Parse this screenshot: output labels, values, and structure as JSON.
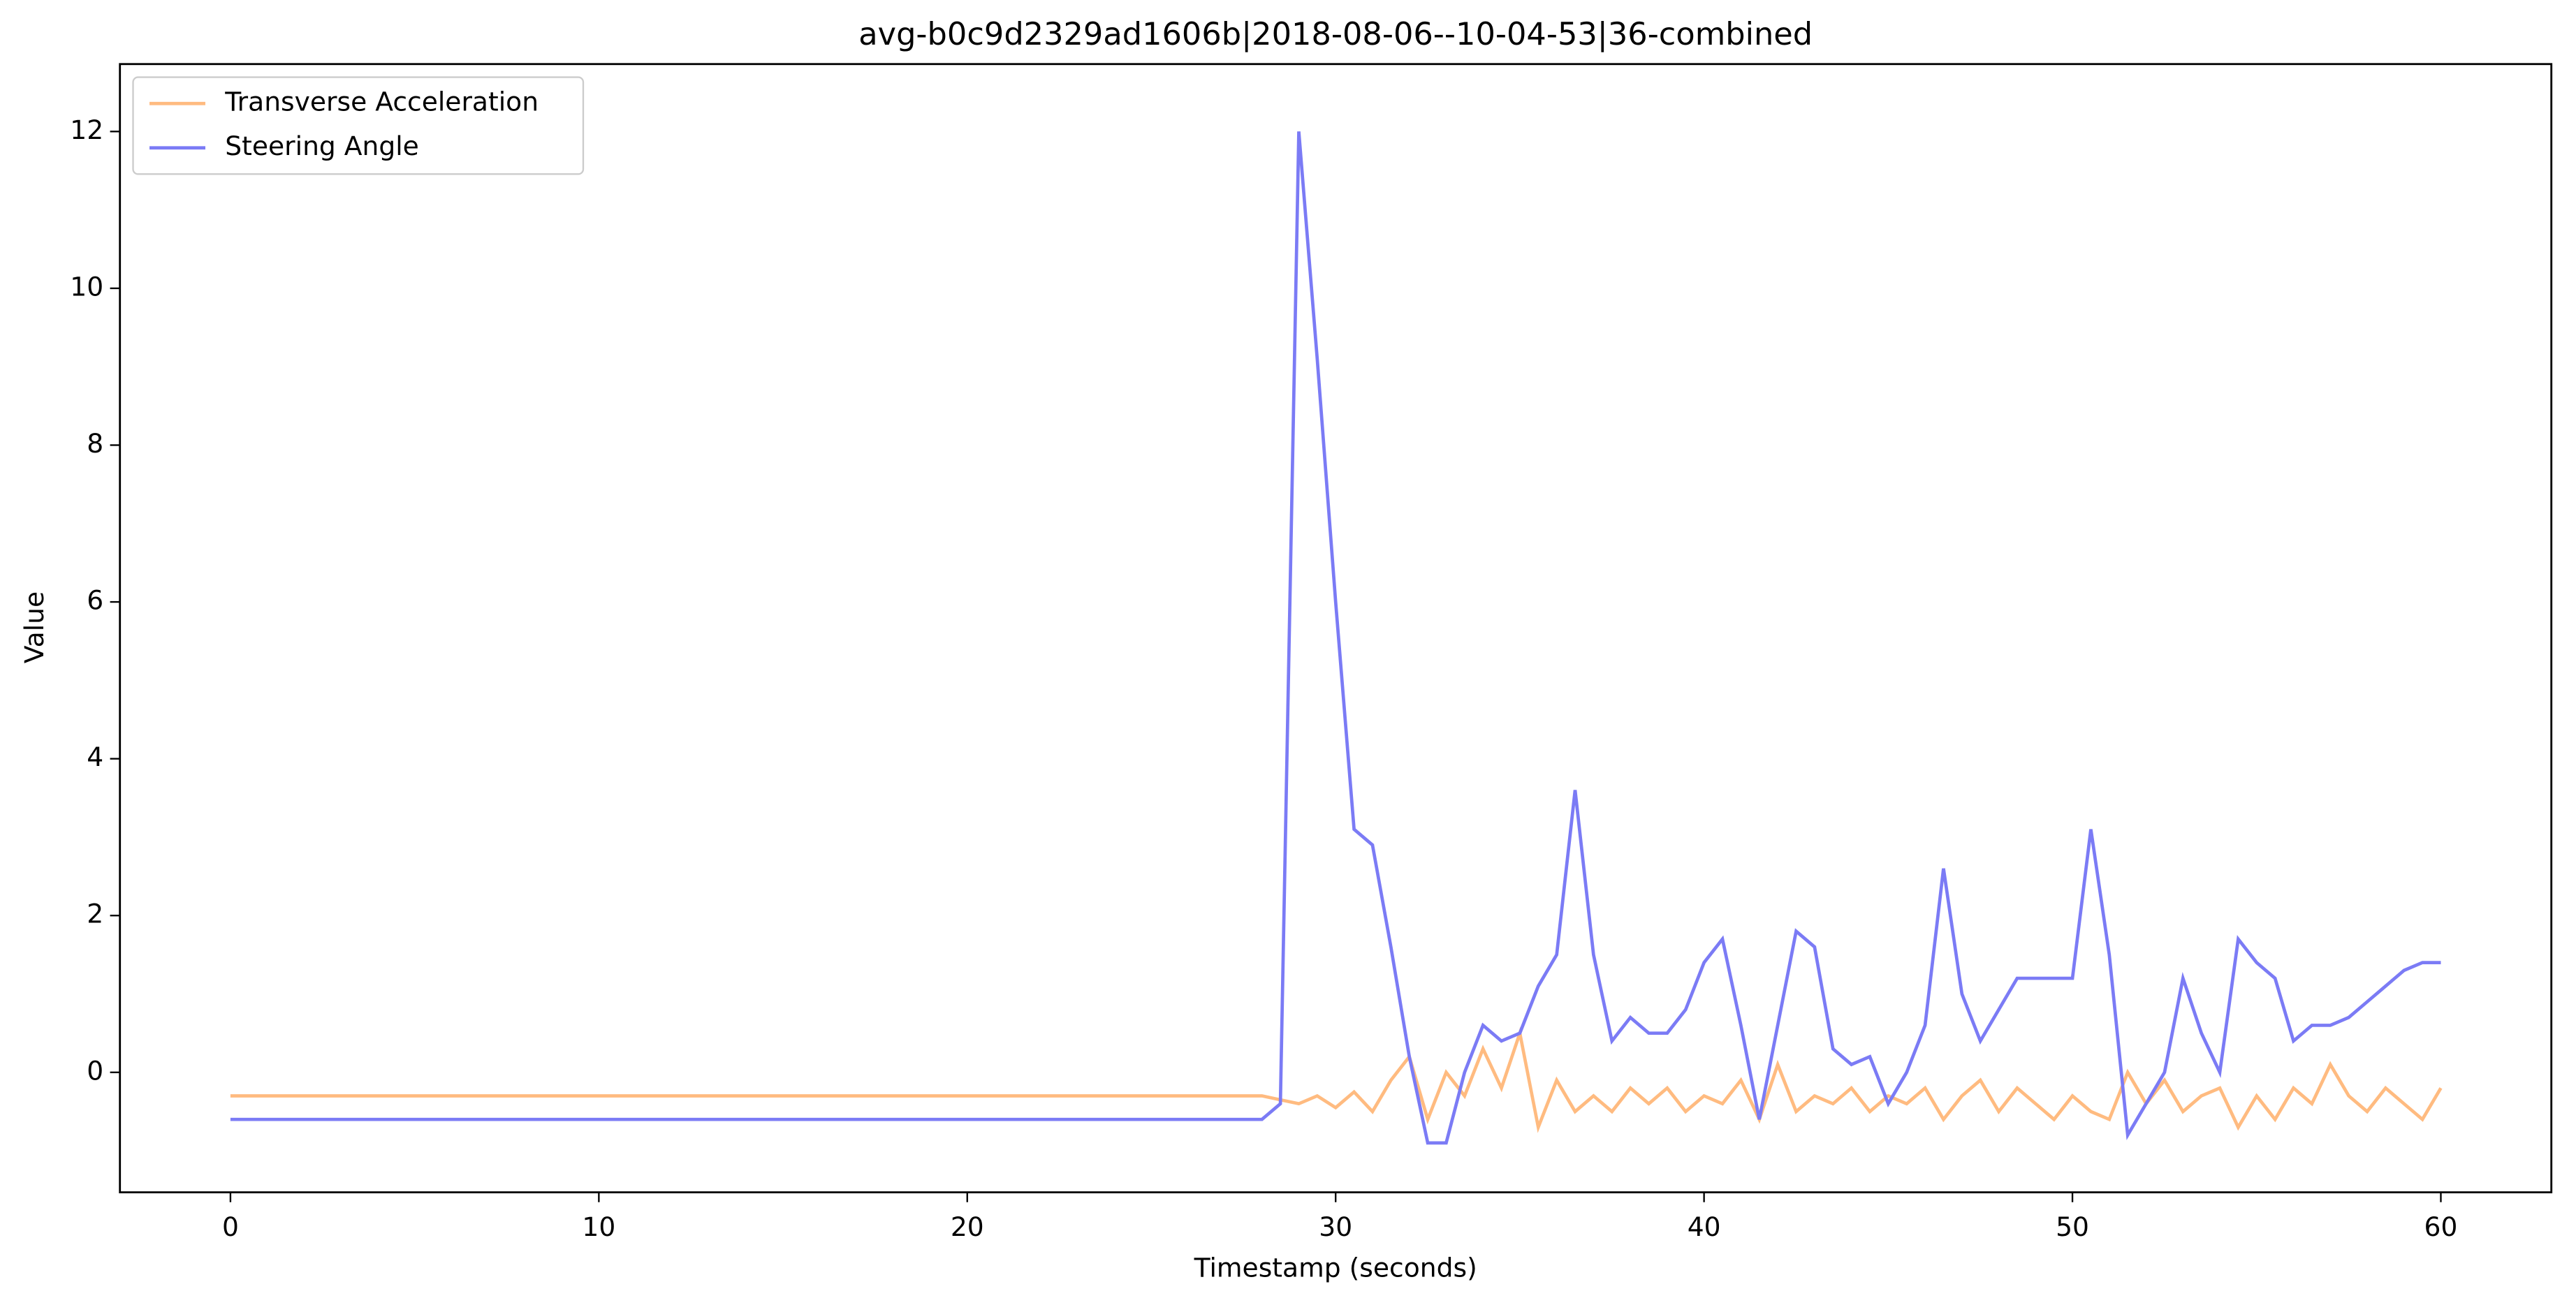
{
  "chart_data": {
    "type": "line",
    "title": "avg-b0c9d2329ad1606b|2018-08-06--10-04-53|36-combined",
    "xlabel": "Timestamp (seconds)",
    "ylabel": "Value",
    "x": [
      0,
      0.5,
      1,
      1.5,
      2,
      2.5,
      3,
      3.5,
      4,
      4.5,
      5,
      5.5,
      6,
      6.5,
      7,
      7.5,
      8,
      8.5,
      9,
      9.5,
      10,
      10.5,
      11,
      11.5,
      12,
      12.5,
      13,
      13.5,
      14,
      14.5,
      15,
      15.5,
      16,
      16.5,
      17,
      17.5,
      18,
      18.5,
      19,
      19.5,
      20,
      20.5,
      21,
      21.5,
      22,
      22.5,
      23,
      23.5,
      24,
      24.5,
      25,
      25.5,
      26,
      26.5,
      27,
      27.5,
      28,
      28.5,
      29,
      29.5,
      30,
      30.5,
      31,
      31.5,
      32,
      32.5,
      33,
      33.5,
      34,
      34.5,
      35,
      35.5,
      36,
      36.5,
      37,
      37.5,
      38,
      38.5,
      39,
      39.5,
      40,
      40.5,
      41,
      41.5,
      42,
      42.5,
      43,
      43.5,
      44,
      44.5,
      45,
      45.5,
      46,
      46.5,
      47,
      47.5,
      48,
      48.5,
      49,
      49.5,
      50,
      50.5,
      51,
      51.5,
      52,
      52.5,
      53,
      53.5,
      54,
      54.5,
      55,
      55.5,
      56,
      56.5,
      57,
      57.5,
      58,
      58.5,
      59,
      59.5,
      60
    ],
    "series": [
      {
        "name": "Transverse Acceleration",
        "color": "#ffbb80",
        "values": [
          -0.3,
          -0.3,
          -0.3,
          -0.3,
          -0.3,
          -0.3,
          -0.3,
          -0.3,
          -0.3,
          -0.3,
          -0.3,
          -0.3,
          -0.3,
          -0.3,
          -0.3,
          -0.3,
          -0.3,
          -0.3,
          -0.3,
          -0.3,
          -0.3,
          -0.3,
          -0.3,
          -0.3,
          -0.3,
          -0.3,
          -0.3,
          -0.3,
          -0.3,
          -0.3,
          -0.3,
          -0.3,
          -0.3,
          -0.3,
          -0.3,
          -0.3,
          -0.3,
          -0.3,
          -0.3,
          -0.3,
          -0.3,
          -0.3,
          -0.3,
          -0.3,
          -0.3,
          -0.3,
          -0.3,
          -0.3,
          -0.3,
          -0.3,
          -0.3,
          -0.3,
          -0.3,
          -0.3,
          -0.3,
          -0.3,
          -0.3,
          -0.35,
          -0.4,
          -0.3,
          -0.45,
          -0.25,
          -0.5,
          -0.1,
          0.2,
          -0.6,
          0.0,
          -0.3,
          0.3,
          -0.2,
          0.5,
          -0.7,
          -0.1,
          -0.5,
          -0.3,
          -0.5,
          -0.2,
          -0.4,
          -0.2,
          -0.5,
          -0.3,
          -0.4,
          -0.1,
          -0.6,
          0.1,
          -0.5,
          -0.3,
          -0.4,
          -0.2,
          -0.5,
          -0.3,
          -0.4,
          -0.2,
          -0.6,
          -0.3,
          -0.1,
          -0.5,
          -0.2,
          -0.4,
          -0.6,
          -0.3,
          -0.5,
          -0.6,
          0.0,
          -0.4,
          -0.1,
          -0.5,
          -0.3,
          -0.2,
          -0.7,
          -0.3,
          -0.6,
          -0.2,
          -0.4,
          0.1,
          -0.3,
          -0.5,
          -0.2,
          -0.4,
          -0.6,
          -0.2
        ]
      },
      {
        "name": "Steering Angle",
        "color": "#7b7bf5",
        "values": [
          -0.6,
          -0.6,
          -0.6,
          -0.6,
          -0.6,
          -0.6,
          -0.6,
          -0.6,
          -0.6,
          -0.6,
          -0.6,
          -0.6,
          -0.6,
          -0.6,
          -0.6,
          -0.6,
          -0.6,
          -0.6,
          -0.6,
          -0.6,
          -0.6,
          -0.6,
          -0.6,
          -0.6,
          -0.6,
          -0.6,
          -0.6,
          -0.6,
          -0.6,
          -0.6,
          -0.6,
          -0.6,
          -0.6,
          -0.6,
          -0.6,
          -0.6,
          -0.6,
          -0.6,
          -0.6,
          -0.6,
          -0.6,
          -0.6,
          -0.6,
          -0.6,
          -0.6,
          -0.6,
          -0.6,
          -0.6,
          -0.6,
          -0.6,
          -0.6,
          -0.6,
          -0.6,
          -0.6,
          -0.6,
          -0.6,
          -0.6,
          -0.4,
          12.0,
          9.1,
          6.0,
          3.1,
          2.9,
          1.6,
          0.2,
          -0.9,
          -0.9,
          0.0,
          0.6,
          0.4,
          0.5,
          1.1,
          1.5,
          3.6,
          1.5,
          0.4,
          0.7,
          0.5,
          0.5,
          0.8,
          1.4,
          1.7,
          0.6,
          -0.6,
          0.6,
          1.8,
          1.6,
          0.3,
          0.1,
          0.2,
          -0.4,
          0.0,
          0.6,
          2.6,
          1.0,
          0.4,
          0.8,
          1.2,
          1.2,
          1.2,
          1.2,
          3.1,
          1.5,
          -0.8,
          -0.4,
          0.0,
          1.2,
          0.5,
          0.0,
          1.7,
          1.4,
          1.2,
          0.4,
          0.6,
          0.6,
          0.7,
          0.9,
          1.1,
          1.3,
          1.4,
          1.4
        ]
      }
    ],
    "xlim": [
      -3,
      63
    ],
    "ylim": [
      -1.53,
      12.86
    ],
    "xticks": [
      0,
      10,
      20,
      30,
      40,
      50,
      60
    ],
    "yticks": [
      0,
      2,
      4,
      6,
      8,
      10,
      12
    ],
    "legend": "upper left"
  }
}
